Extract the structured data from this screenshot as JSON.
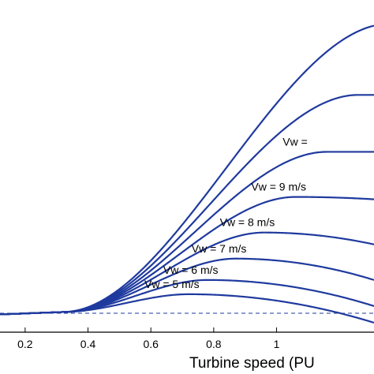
{
  "chart_data": {
    "type": "line",
    "title": "",
    "xlabel": "Turbine speed (PU",
    "ylabel": "",
    "xlim": [
      0.12,
      1.31
    ],
    "ylim": [
      -0.08,
      1.32
    ],
    "x_ticks": [
      0.2,
      0.4,
      0.6,
      0.8,
      1
    ],
    "x_tick_labels": [
      "0.2",
      "0.4",
      "0.6",
      "0.8",
      "1"
    ],
    "grid": false,
    "line_color": "#1f3a9e",
    "reference_line": {
      "y": 0,
      "style": "dashed",
      "color": "#1f3a9e"
    },
    "series": [
      {
        "name": "Vw = 5 m/s",
        "label_visible": true,
        "peak_x": 0.72,
        "peak_y": 0.08,
        "end_y": -0.04
      },
      {
        "name": "Vw = 6 m/s",
        "label_visible": true,
        "peak_x": 0.78,
        "peak_y": 0.14,
        "end_y": 0.03
      },
      {
        "name": "Vw = 7 m/s",
        "label_visible": true,
        "peak_x": 0.87,
        "peak_y": 0.23,
        "end_y": 0.14
      },
      {
        "name": "Vw = 8 m/s",
        "label_visible": true,
        "peak_x": 0.96,
        "peak_y": 0.34,
        "end_y": 0.29
      },
      {
        "name": "Vw = 9 m/s",
        "label_visible": true,
        "peak_x": 1.06,
        "peak_y": 0.49,
        "end_y": 0.48
      },
      {
        "name": "Vw = ",
        "label_visible": true,
        "peak_x": 1.16,
        "peak_y": 0.68,
        "end_y": 0.68
      },
      {
        "name": "",
        "label_visible": false,
        "peak_x": 1.26,
        "peak_y": 0.92,
        "end_y": 0.92
      },
      {
        "name": "",
        "label_visible": false,
        "peak_x": 1.36,
        "peak_y": 1.22,
        "end_y": 1.15
      }
    ]
  }
}
